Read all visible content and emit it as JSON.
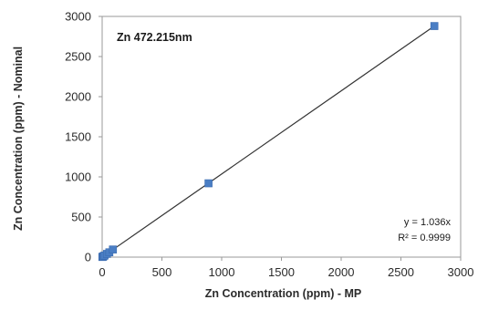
{
  "chart_data": {
    "type": "scatter",
    "title": "",
    "annotation": "Zn 472.215nm",
    "xlabel": "Zn Concentration (ppm) - MP",
    "ylabel": "Zn Concentration (ppm) - Nominal",
    "xlim": [
      0,
      3000
    ],
    "ylim": [
      0,
      3000
    ],
    "x_ticks": [
      0,
      500,
      1000,
      1500,
      2000,
      2500,
      3000
    ],
    "y_ticks": [
      0,
      500,
      1000,
      1500,
      2000,
      2500,
      3000
    ],
    "grid": false,
    "legend": "none",
    "series": [
      {
        "marker": "square",
        "color": "#4a7ec4",
        "points": [
          {
            "x": 2,
            "y": 2
          },
          {
            "x": 5,
            "y": 5
          },
          {
            "x": 10,
            "y": 10
          },
          {
            "x": 20,
            "y": 20
          },
          {
            "x": 40,
            "y": 40
          },
          {
            "x": 60,
            "y": 60
          },
          {
            "x": 90,
            "y": 95
          },
          {
            "x": 890,
            "y": 920
          },
          {
            "x": 2780,
            "y": 2880
          }
        ]
      }
    ],
    "trendline": {
      "slope": 1.036,
      "x_range": [
        0,
        2780
      ],
      "color": "#333333",
      "equation": "y = 1.036x",
      "r2": "R² = 0.9999"
    }
  }
}
